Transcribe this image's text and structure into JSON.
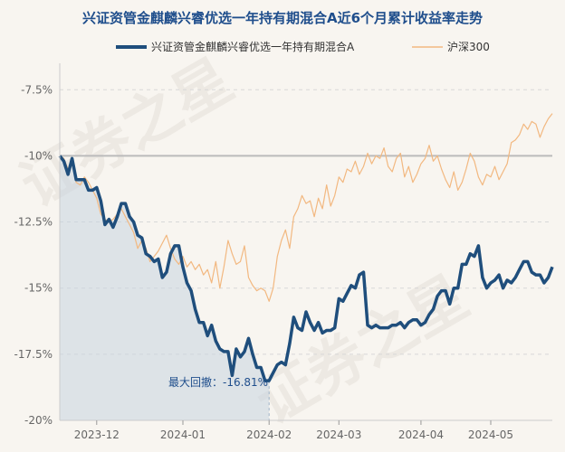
{
  "chart_data": {
    "type": "line",
    "title": "兴证资管金麒麟兴睿优选一年持有期混合A近6个月累计收益率走势",
    "legend_position": "top",
    "ylim": [
      -20,
      -6.5
    ],
    "ytick_values": [
      -7.5,
      -10,
      -12.5,
      -15,
      -17.5,
      -20
    ],
    "ytick_labels": [
      "-7.5%",
      "-10%",
      "-12.5%",
      "-15%",
      "-17.5%",
      "-20%"
    ],
    "x_index_range": [
      0,
      120
    ],
    "xtick_labels": [
      "2023-12",
      "2024-01",
      "2024-02",
      "2024-03",
      "2024-04",
      "2024-05"
    ],
    "xtick_positions": [
      9,
      30,
      51,
      68,
      88,
      105
    ],
    "reference_line": -10,
    "max_drawdown_index": 51,
    "annotation": "最大回撤：-16.81%",
    "series": [
      {
        "name": "兴证资管金麒麟兴睿优选一年持有期混合A",
        "color": "#1f4e7c",
        "values": [
          -10,
          -10.2,
          -10.7,
          -10.1,
          -10.9,
          -10.9,
          -10.9,
          -11.3,
          -11.3,
          -11.2,
          -11.7,
          -12.6,
          -12.4,
          -12.7,
          -12.3,
          -11.8,
          -11.8,
          -12.3,
          -12.5,
          -13.0,
          -13.1,
          -13.7,
          -13.8,
          -14.0,
          -13.9,
          -14.6,
          -14.4,
          -13.7,
          -13.4,
          -13.4,
          -14.2,
          -14.8,
          -15.1,
          -15.8,
          -16.3,
          -16.3,
          -16.8,
          -16.4,
          -17.0,
          -17.3,
          -17.4,
          -17.4,
          -18.3,
          -17.3,
          -17.6,
          -17.4,
          -16.9,
          -17.5,
          -18.0,
          -18.0,
          -18.5,
          -18.5,
          -18.2,
          -17.9,
          -17.8,
          -17.9,
          -17.1,
          -16.1,
          -16.5,
          -16.6,
          -15.9,
          -16.3,
          -16.6,
          -16.3,
          -16.7,
          -16.6,
          -16.6,
          -16.5,
          -15.4,
          -15.5,
          -15.2,
          -14.9,
          -15.0,
          -14.5,
          -14.4,
          -16.4,
          -16.5,
          -16.4,
          -16.5,
          -16.5,
          -16.5,
          -16.4,
          -16.4,
          -16.3,
          -16.5,
          -16.3,
          -16.2,
          -16.2,
          -16.4,
          -16.3,
          -16.0,
          -15.8,
          -15.3,
          -15.1,
          -15.1,
          -15.6,
          -15.0,
          -15.0,
          -14.1,
          -14.1,
          -13.7,
          -13.8,
          -13.4,
          -14.6,
          -15.0,
          -14.8,
          -14.7,
          -14.5,
          -15.0,
          -14.7,
          -14.8,
          -14.6,
          -14.3,
          -14.0,
          -14.0,
          -14.4,
          -14.5,
          -14.5,
          -14.8,
          -14.6,
          -14.2
        ]
      },
      {
        "name": "沪深300",
        "color": "#f2b880",
        "values": [
          -10,
          -10.1,
          -10.5,
          -10.3,
          -11.0,
          -11.1,
          -10.8,
          -11.0,
          -11.3,
          -11.6,
          -12.2,
          -12.4,
          -12.5,
          -12.4,
          -12.2,
          -12.0,
          -12.3,
          -12.6,
          -12.9,
          -13.5,
          -13.2,
          -13.5,
          -14.0,
          -13.8,
          -13.6,
          -13.3,
          -13.0,
          -13.5,
          -13.9,
          -14.1,
          -13.8,
          -14.2,
          -14.0,
          -14.3,
          -14.1,
          -14.5,
          -14.3,
          -14.8,
          -14.0,
          -15.0,
          -14.2,
          -13.2,
          -13.7,
          -14.1,
          -14.0,
          -13.4,
          -14.6,
          -14.9,
          -15.1,
          -15.0,
          -15.1,
          -15.5,
          -15.0,
          -13.8,
          -13.2,
          -12.8,
          -13.5,
          -12.3,
          -12.0,
          -11.5,
          -11.8,
          -11.7,
          -12.3,
          -11.6,
          -12.0,
          -11.1,
          -11.9,
          -11.5,
          -10.8,
          -11.0,
          -10.5,
          -10.6,
          -10.2,
          -10.7,
          -10.4,
          -9.9,
          -10.3,
          -10.0,
          -10.1,
          -9.7,
          -10.4,
          -10.6,
          -10.1,
          -9.9,
          -10.8,
          -10.4,
          -11.0,
          -10.7,
          -10.3,
          -10.1,
          -9.6,
          -10.2,
          -10.0,
          -10.5,
          -10.9,
          -11.2,
          -10.6,
          -11.3,
          -11.0,
          -10.5,
          -9.9,
          -10.2,
          -10.8,
          -11.1,
          -10.7,
          -10.8,
          -10.4,
          -10.9,
          -10.6,
          -10.3,
          -9.5,
          -9.4,
          -9.2,
          -8.8,
          -9.0,
          -8.7,
          -8.8,
          -9.3,
          -8.9,
          -8.6,
          -8.4
        ]
      }
    ]
  },
  "watermark": [
    "证券之星",
    "证券之星"
  ]
}
